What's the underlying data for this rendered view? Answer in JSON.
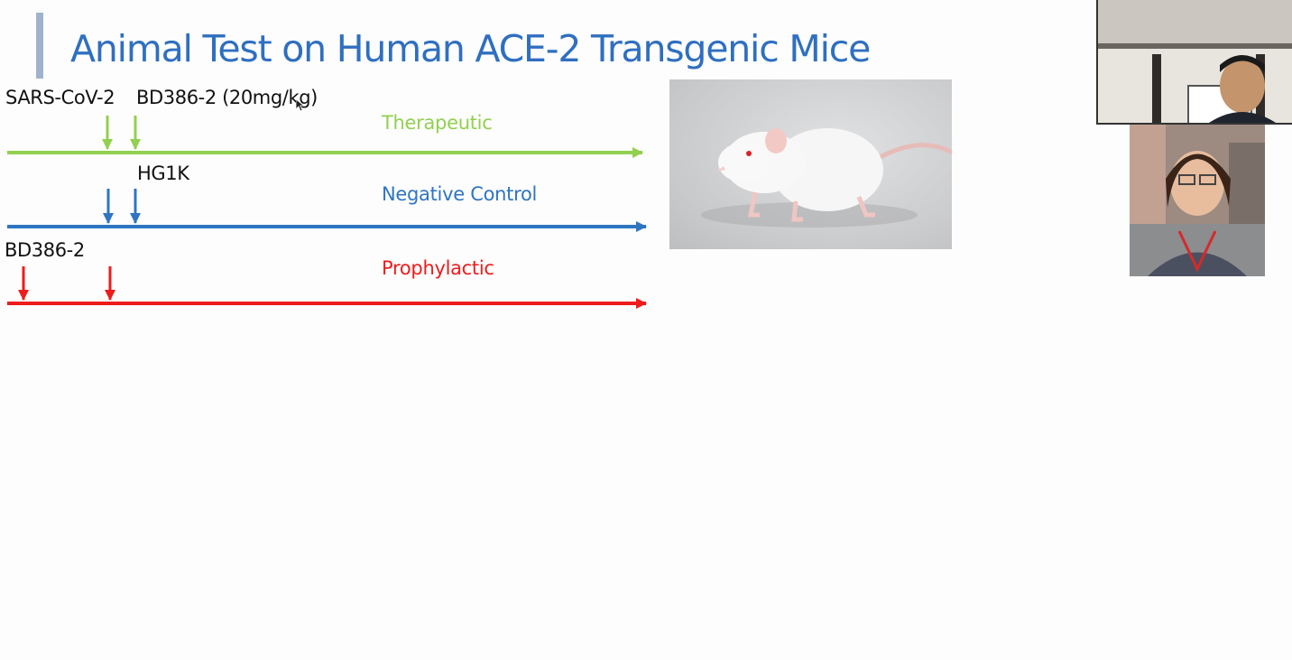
{
  "slide": {
    "title": "Animal Test on Human ACE-2 Transgenic Mice",
    "labels": {
      "sars": "SARS-CoV-2",
      "bd_dose": "BD386-2 (20mg/kg)",
      "hg1k": "HG1K",
      "bd386": "BD386-2"
    },
    "groups": {
      "therapeutic": "Therapeutic",
      "negative": "Negative Control",
      "prophylactic": "Prophylactic"
    },
    "colors": {
      "therapeutic": "#92d050",
      "negative": "#2e75c2",
      "prophylactic": "#ee1c1c",
      "title": "#2f6fc0",
      "accent_bar": "#9fb3cf"
    }
  },
  "images": {
    "mouse": "white-rat-photo",
    "participants": [
      "video-participant-man",
      "video-participant-woman"
    ]
  }
}
